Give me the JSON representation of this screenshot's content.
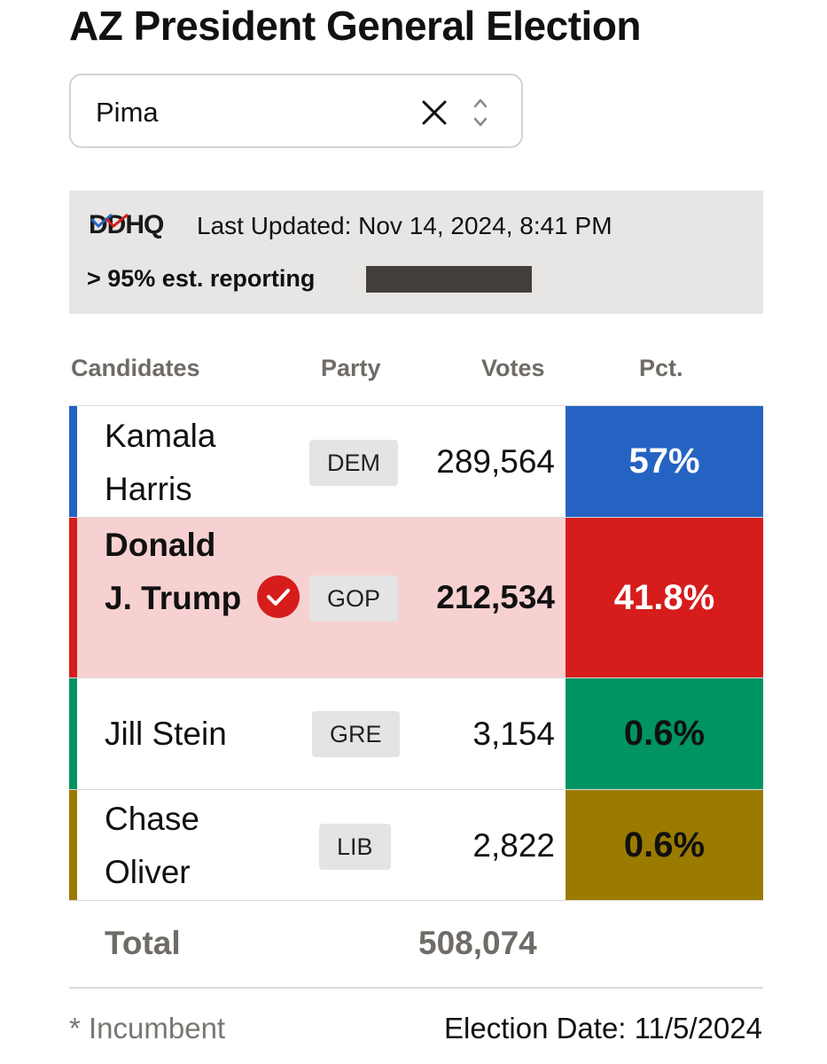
{
  "header": {
    "title": "AZ President General Election"
  },
  "county_select": {
    "value": "Pima",
    "clear_icon": "close-icon",
    "toggle_icon": "chevron-updown-icon"
  },
  "info": {
    "logo_text": "DDHQ",
    "last_updated": "Last Updated: Nov 14, 2024, 8:41 PM",
    "reporting": "> 95% est. reporting",
    "reporting_fraction": 0.95
  },
  "table": {
    "headers": {
      "candidates": "Candidates",
      "party": "Party",
      "votes": "Votes",
      "pct": "Pct."
    },
    "rows": [
      {
        "name": "Kamala Harris",
        "party": "DEM",
        "votes": "289,564",
        "pct": "57%",
        "winner": false,
        "color": "#2563c3"
      },
      {
        "name": "Donald J. Trump",
        "party": "GOP",
        "votes": "212,534",
        "pct": "41.8%",
        "winner": true,
        "color": "#d71c1c"
      },
      {
        "name": "Jill Stein",
        "party": "GRE",
        "votes": "3,154",
        "pct": "0.6%",
        "winner": false,
        "color": "#009462"
      },
      {
        "name": "Chase Oliver",
        "party": "LIB",
        "votes": "2,822",
        "pct": "0.6%",
        "winner": false,
        "color": "#9b7a00"
      }
    ],
    "total": {
      "label": "Total",
      "votes": "508,074"
    }
  },
  "footer": {
    "incumbent_note": "* Incumbent",
    "election_date": "Election Date: 11/5/2024"
  },
  "colors": {
    "winner_row_bg": "#f7d1d1",
    "winner_check": "#d71c1c"
  }
}
